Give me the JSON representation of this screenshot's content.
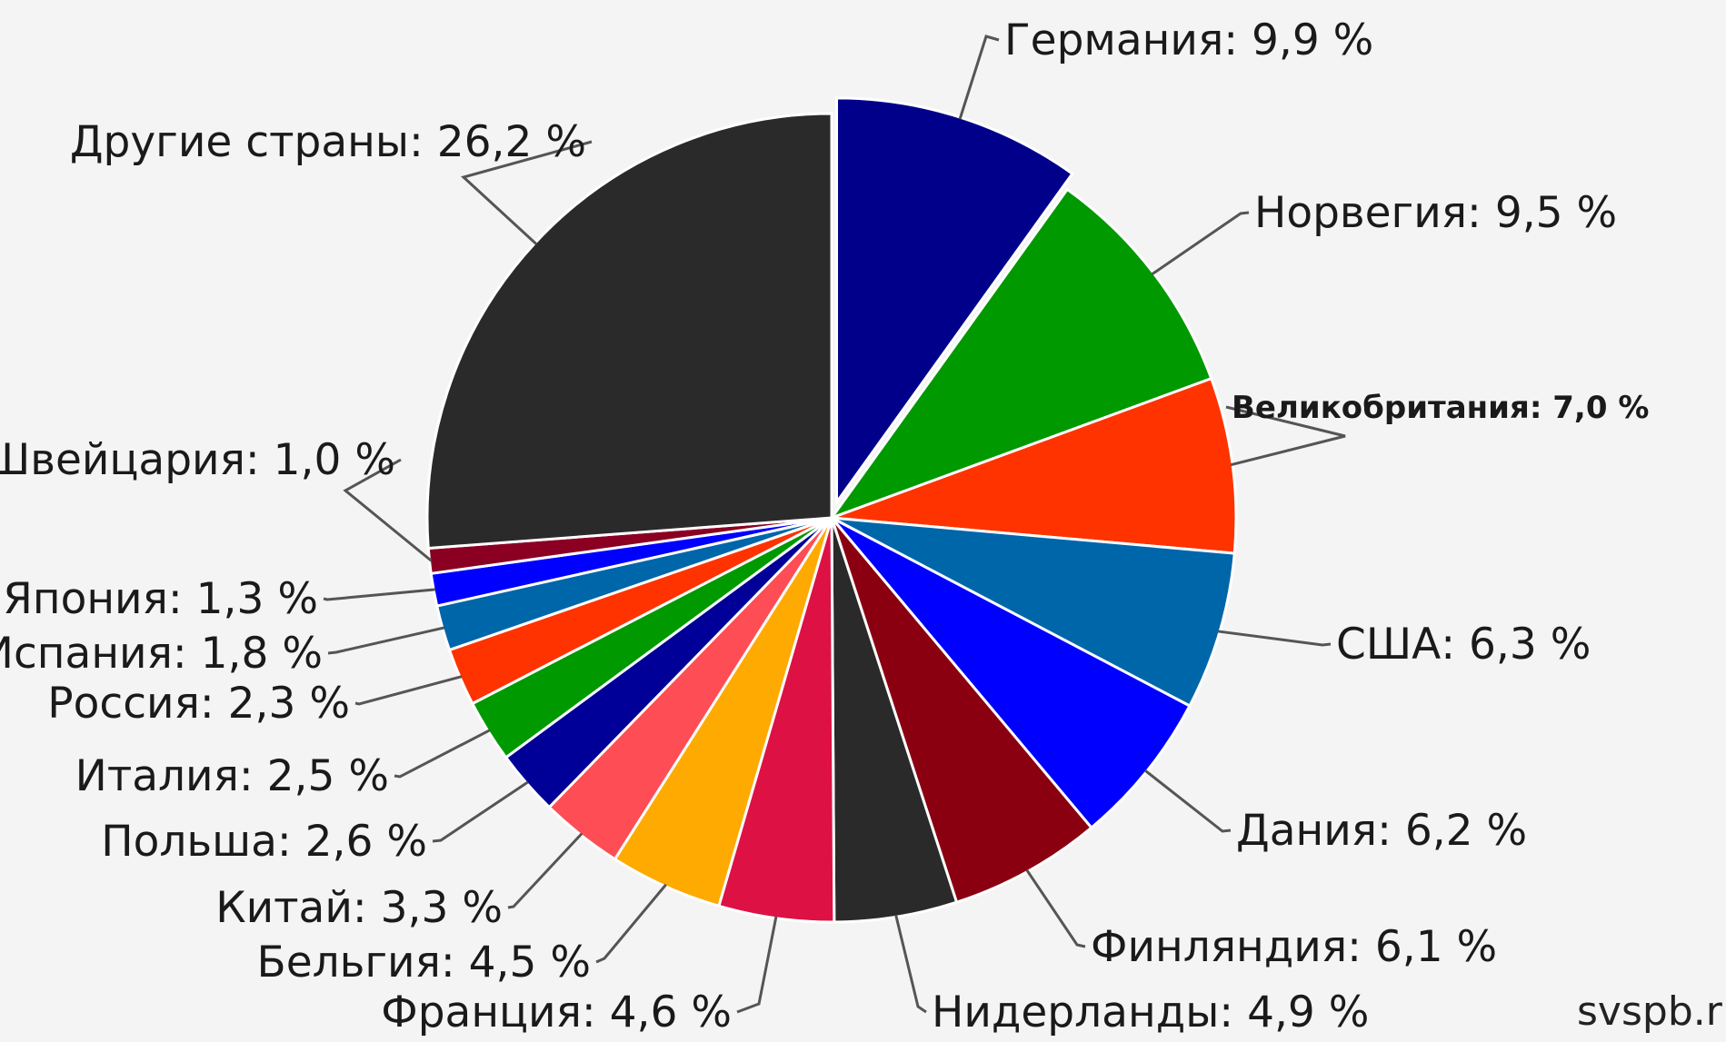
{
  "chart_data": {
    "type": "pie",
    "title": "",
    "start_angle_deg": 0,
    "direction": "clockwise",
    "exploded": [
      "Германия"
    ],
    "slices": [
      {
        "name": "Германия",
        "value": 9.9,
        "label": "Германия: 9,9 %",
        "color": "#00008b"
      },
      {
        "name": "Норвегия",
        "value": 9.5,
        "label": "Норвегия: 9,5 %",
        "color": "#009900"
      },
      {
        "name": "Великобритания",
        "value": 7.0,
        "label": "Великобритания: 7,0 %",
        "color": "#ff3300"
      },
      {
        "name": "США",
        "value": 6.3,
        "label": "США: 6,3 %",
        "color": "#0066aa"
      },
      {
        "name": "Дания",
        "value": 6.2,
        "label": "Дания: 6,2 %",
        "color": "#0000ff"
      },
      {
        "name": "Финляндия",
        "value": 6.1,
        "label": "Финляндия: 6,1 %",
        "color": "#8b0011"
      },
      {
        "name": "Нидерланды",
        "value": 4.9,
        "label": "Нидерланды: 4,9 %",
        "color": "#2a2a2a"
      },
      {
        "name": "Франция",
        "value": 4.6,
        "label": "Франция: 4,6 %",
        "color": "#dd1144"
      },
      {
        "name": "Бельгия",
        "value": 4.5,
        "label": "Бельгия: 4,5 %",
        "color": "#ffaa00"
      },
      {
        "name": "Китай",
        "value": 3.3,
        "label": "Китай: 3,3 %",
        "color": "#ff4d55"
      },
      {
        "name": "Польша",
        "value": 2.6,
        "label": "Польша: 2,6 %",
        "color": "#000099"
      },
      {
        "name": "Италия",
        "value": 2.5,
        "label": "Италия: 2,5 %",
        "color": "#009900"
      },
      {
        "name": "Россия",
        "value": 2.3,
        "label": "Россия: 2,3 %",
        "color": "#ff3300"
      },
      {
        "name": "Испания",
        "value": 1.8,
        "label": "Испания: 1,8 %",
        "color": "#0066aa"
      },
      {
        "name": "Япония",
        "value": 1.3,
        "label": "Япония: 1,3 %",
        "color": "#0000ff"
      },
      {
        "name": "Швейцария",
        "value": 1.0,
        "label": "Швейцария: 1,0 %",
        "color": "#8b0022"
      },
      {
        "name": "Другие страны",
        "value": 26.2,
        "label": "Другие страны: 26,2 %",
        "color": "#2a2a2a"
      }
    ]
  },
  "watermark": "svspb.r"
}
